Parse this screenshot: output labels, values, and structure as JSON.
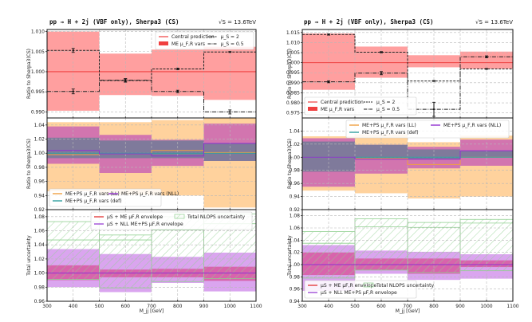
{
  "chart_data": [
    {
      "type": "step-band",
      "panel_id": "left",
      "title": "pp → H + 2j (VBF only), Sherpa3 (CS)",
      "energy_label": "√S = 13.6TeV",
      "xlabel": "M_jj   [GeV]",
      "x_ticks": [
        "300",
        "400",
        "500",
        "600",
        "700",
        "800",
        "900",
        "1000",
        "1100"
      ],
      "xlim": [
        300,
        1100
      ],
      "bins": [
        [
          300,
          500
        ],
        [
          500,
          700
        ],
        [
          700,
          900
        ],
        [
          900,
          1100
        ]
      ],
      "subplots": [
        {
          "name": "me-variations",
          "ylabel": "Ratio to Sherpa3(CS)",
          "ylim": [
            0.9885,
            1.0105
          ],
          "y_ticks": [
            "0.990",
            "0.995",
            "1.000",
            "1.005",
            "1.010"
          ],
          "legend": {
            "position": "top-right",
            "entries": [
              "Central prediction",
              "ME μ_F,R vars",
              "μ_S = 2",
              "μ_S = 0.5"
            ]
          },
          "bands": [
            {
              "name": "ME μ_F,R vars",
              "color": "#ff9a9a",
              "lo": [
                0.9903,
                0.9942,
                0.994,
                0.993
              ],
              "hi": [
                1.01,
                1.0045,
                1.0055,
                1.0062
              ]
            }
          ],
          "central": {
            "name": "Central prediction",
            "color": "#f04040",
            "values": [
              1.0,
              1.0,
              1.0,
              1.0
            ]
          },
          "lines": [
            {
              "name": "μ_S = 2",
              "style": "dashed",
              "values": [
                1.0053,
                0.9978,
                1.0007,
                1.0049
              ],
              "err": [
                0.0005,
                0.0004,
                0.0002,
                0.0001
              ]
            },
            {
              "name": "μ_S = 0.5",
              "style": "dashdot",
              "values": [
                0.9951,
                0.9979,
                0.9951,
                0.99
              ],
              "err": [
                0.0006,
                0.0004,
                0.0003,
                0.0005
              ]
            }
          ]
        },
        {
          "name": "me-ps-variations",
          "ylabel": "Ratio to Sherpa3(CS)",
          "ylim": [
            0.92,
            1.05
          ],
          "y_ticks": [
            "0.92",
            "0.94",
            "0.96",
            "0.98",
            "1.00",
            "1.02",
            "1.04"
          ],
          "legend": {
            "position": "bottom-left",
            "entries": [
              "ME+PS μ_F,R vars (LL)",
              "ME+PS μ_F,R vars (def)",
              "ME+PS μ_F,R vars (NLL)"
            ]
          },
          "bands": [
            {
              "name": "LL",
              "color": "#ffd098",
              "lo": [
                0.946,
                0.941,
                0.94,
                0.923
              ],
              "hi": [
                1.044,
                1.044,
                1.047,
                1.05
              ]
            },
            {
              "name": "NLL",
              "color": "#d070b0",
              "lo": [
                0.985,
                0.972,
                0.982,
                0.989
              ],
              "hi": [
                1.038,
                1.026,
                1.019,
                1.042
              ]
            },
            {
              "name": "def",
              "color": "#7a7a9a",
              "lo": [
                0.993,
                0.993,
                0.993,
                0.989
              ],
              "hi": [
                1.022,
                1.018,
                1.018,
                1.014
              ]
            }
          ],
          "lines": [
            {
              "name": "ME+PS μ_F,R vars (LL)",
              "color": "#f0a040",
              "values": [
                0.998,
                0.999,
                1.004,
                1.001
              ]
            },
            {
              "name": "ME+PS μ_F,R vars (def)",
              "color": "#30a0a0",
              "values": [
                1.0,
                1.0,
                1.0,
                1.0
              ]
            },
            {
              "name": "ME+PS μ_F,R vars (NLL)",
              "color": "#9030d0",
              "values": [
                1.004,
                0.999,
                0.996,
                1.014
              ]
            }
          ]
        },
        {
          "name": "total-uncertainty",
          "ylabel": "Total uncertainty",
          "ylim": [
            0.96,
            1.09
          ],
          "y_ticks": [
            "0.96",
            "0.98",
            "1.00",
            "1.02",
            "1.04",
            "1.06",
            "1.08"
          ],
          "legend": {
            "position": "top",
            "entries": [
              "μS + ME μF,R envelope",
              "μS + NLL ME+PS μF,R envelope",
              "Total NLOPS uncertainty"
            ]
          },
          "bands": [
            {
              "name": "μS + NLL ME+PS μF,R envelope",
              "color": "#d8a0ee",
              "lo": [
                0.98,
                0.973,
                0.986,
                0.974
              ],
              "hi": [
                1.034,
                1.027,
                1.023,
                1.029
              ]
            },
            {
              "name": "μS + ME μF,R envelope",
              "color": "#d860a8",
              "lo": [
                0.99,
                0.994,
                0.994,
                0.989
              ],
              "hi": [
                1.011,
                1.005,
                1.006,
                1.009
              ]
            }
          ],
          "hatched": {
            "name": "Total NLOPS uncertainty",
            "color": "#90d090",
            "lo": [
              0.991,
              0.979,
              0.988,
              0.992
            ],
            "hi": [
              1.073,
              1.054,
              1.08,
              1.084
            ],
            "inner_hi": [
              1.047,
              1.047,
              1.061,
              1.07
            ]
          },
          "central": {
            "color": "#9030d0",
            "values": [
              1.0,
              1.0,
              1.0,
              1.0
            ]
          }
        }
      ]
    },
    {
      "type": "step-band",
      "panel_id": "right",
      "title": "pp → H + 2j (VBF only), Sherpa3 (CS)",
      "energy_label": "√S = 13.6TeV",
      "xlabel": "M_jj   [GeV]",
      "x_ticks": [
        "300",
        "400",
        "500",
        "600",
        "700",
        "800",
        "900",
        "1000",
        "1100"
      ],
      "xlim": [
        300,
        1100
      ],
      "bins": [
        [
          300,
          500
        ],
        [
          500,
          700
        ],
        [
          700,
          900
        ],
        [
          900,
          1100
        ]
      ],
      "subplots": [
        {
          "name": "me-variations",
          "ylabel": "Ratio to Sherpa3(CS)",
          "ylim": [
            0.9725,
            1.0165
          ],
          "y_ticks": [
            "0.975",
            "0.980",
            "0.985",
            "0.990",
            "0.995",
            "1.000",
            "1.005",
            "1.010",
            "1.015"
          ],
          "legend": {
            "position": "bottom-left",
            "entries": [
              "Central prediction",
              "ME μ_F,R vars",
              "μ_S = 2",
              "μ_S = 0.5"
            ]
          },
          "bands": [
            {
              "name": "ME μ_F,R vars",
              "color": "#ff9a9a",
              "lo": [
                0.9865,
                0.9925,
                0.9977,
                0.997
              ],
              "hi": [
                1.0145,
                1.008,
                1.0037,
                1.0055
              ]
            }
          ],
          "central": {
            "name": "Central prediction",
            "color": "#f04040",
            "values": [
              1.0,
              1.0,
              1.0,
              1.0
            ]
          },
          "lines": [
            {
              "name": "μ_S = 2",
              "style": "dashed",
              "values": [
                1.014,
                1.0052,
                0.9909,
                0.9969
              ],
              "err": [
                0.0003,
                0.0003,
                0.0002,
                0.0002
              ]
            },
            {
              "name": "μ_S = 0.5",
              "style": "dashdot",
              "values": [
                0.9905,
                0.9948,
                0.9768,
                1.0029
              ],
              "err": [
                0.0005,
                0.0008,
                0.0035,
                0.0005
              ]
            }
          ]
        },
        {
          "name": "me-ps-variations",
          "ylabel": "Ratio to Sherpa3(CS)",
          "ylim": [
            0.92,
            1.06
          ],
          "y_ticks": [
            "0.92",
            "0.94",
            "0.96",
            "0.98",
            "1.00",
            "1.02",
            "1.04"
          ],
          "legend": {
            "position": "top",
            "entries": [
              "ME+PS μ_F,R vars (LL)",
              "ME+PS μ_F,R vars (def)",
              "ME+PS μ_F,R vars (NLL)"
            ]
          },
          "bands": [
            {
              "name": "LL",
              "color": "#ffd098",
              "lo": [
                0.949,
                0.945,
                0.937,
                0.94
              ],
              "hi": [
                1.032,
                1.035,
                1.023,
                1.033
              ]
            },
            {
              "name": "NLL",
              "color": "#d070b0",
              "lo": [
                0.955,
                0.975,
                0.983,
                0.987
              ],
              "hi": [
                1.029,
                1.019,
                1.016,
                1.027
              ]
            },
            {
              "name": "def",
              "color": "#7a7a9a",
              "lo": [
                0.978,
                0.998,
                0.997,
                1.0
              ],
              "hi": [
                1.024,
                1.019,
                1.012,
                1.01
              ]
            }
          ],
          "lines": [
            {
              "name": "ME+PS μ_F,R vars (LL)",
              "color": "#f0a040",
              "values": [
                1.0,
                0.998,
                0.989,
                1.0
              ]
            },
            {
              "name": "ME+PS μ_F,R vars (def)",
              "color": "#30a0a0",
              "values": [
                1.0,
                1.0,
                1.0,
                1.0
              ]
            },
            {
              "name": "ME+PS μ_F,R vars (NLL)",
              "color": "#9030d0",
              "values": [
                1.0,
                0.997,
                0.997,
                1.01
              ]
            }
          ]
        },
        {
          "name": "total-uncertainty",
          "ylabel": "Total uncertainty",
          "ylim": [
            0.94,
            1.09
          ],
          "y_ticks": [
            "0.94",
            "0.96",
            "0.98",
            "1.00",
            "1.02",
            "1.04",
            "1.06",
            "1.08"
          ],
          "legend": {
            "position": "bottom-left",
            "entries": [
              "μS + ME μF,R envelope",
              "μS + NLL ME+PS μF,R envelope",
              "Total NLOPS uncertainty"
            ]
          },
          "bands": [
            {
              "name": "μS + NLL ME+PS μF,R envelope",
              "color": "#d8a0ee",
              "lo": [
                0.957,
                0.985,
                0.975,
                0.977
              ],
              "hi": [
                1.032,
                1.023,
                1.021,
                1.017
              ]
            },
            {
              "name": "μS + ME μF,R envelope",
              "color": "#d860a8",
              "lo": [
                0.983,
                0.991,
                0.985,
                0.996
              ],
              "hi": [
                1.02,
                1.01,
                1.01,
                1.007
              ]
            }
          ],
          "hatched": {
            "name": "Total NLOPS uncertainty",
            "color": "#90d090",
            "lo": [
              0.978,
              0.991,
              0.987,
              0.99
            ],
            "hi": [
              1.054,
              1.075,
              1.069,
              1.074
            ],
            "inner_hi": [
              1.035,
              1.062,
              1.061,
              1.068
            ]
          },
          "central": {
            "color": "#9030d0",
            "values": [
              1.0,
              1.0,
              1.0,
              1.0
            ]
          }
        }
      ]
    }
  ]
}
